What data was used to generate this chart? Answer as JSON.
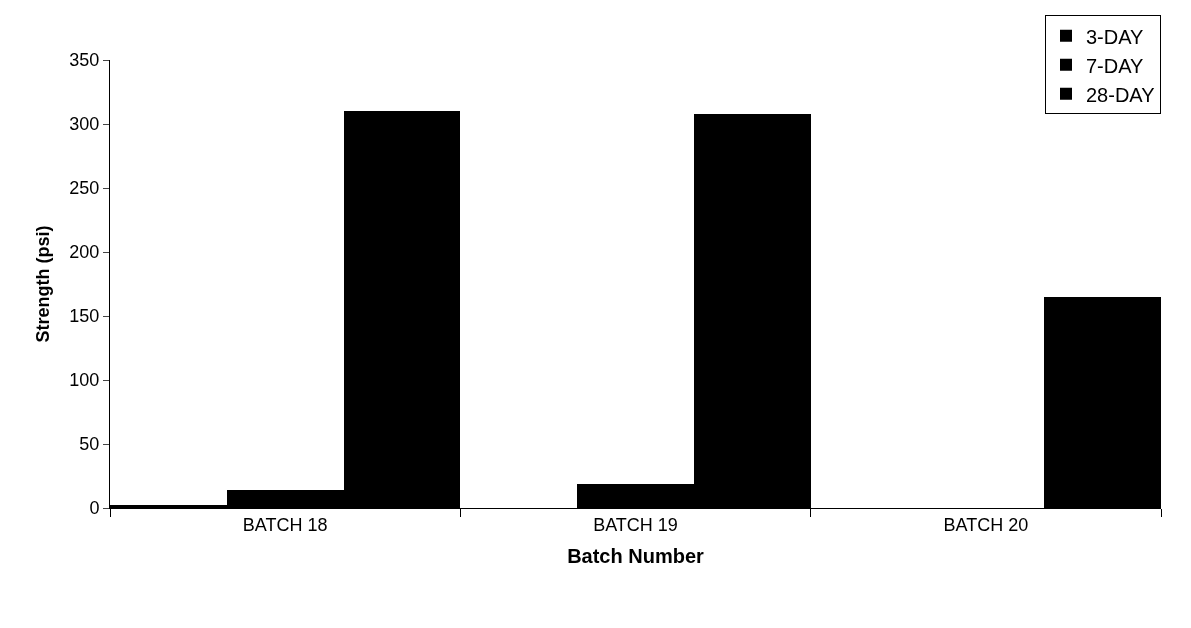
{
  "chart_data": {
    "type": "bar",
    "xlabel": "Batch Number",
    "ylabel": "Strength (psi)",
    "categories": [
      "BATCH 18",
      "BATCH 19",
      "BATCH 20"
    ],
    "series": [
      {
        "name": "3-DAY",
        "color": "#000000",
        "values": [
          2,
          0,
          0
        ]
      },
      {
        "name": "7-DAY",
        "color": "#000000",
        "values": [
          14,
          19,
          0
        ]
      },
      {
        "name": "28-DAY",
        "color": "#000000",
        "values": [
          310,
          308,
          165
        ]
      }
    ],
    "ylim": [
      0,
      350
    ],
    "yticks": [
      0,
      50,
      100,
      150,
      200,
      250,
      300,
      350
    ],
    "grid": false,
    "legend": "top right"
  }
}
